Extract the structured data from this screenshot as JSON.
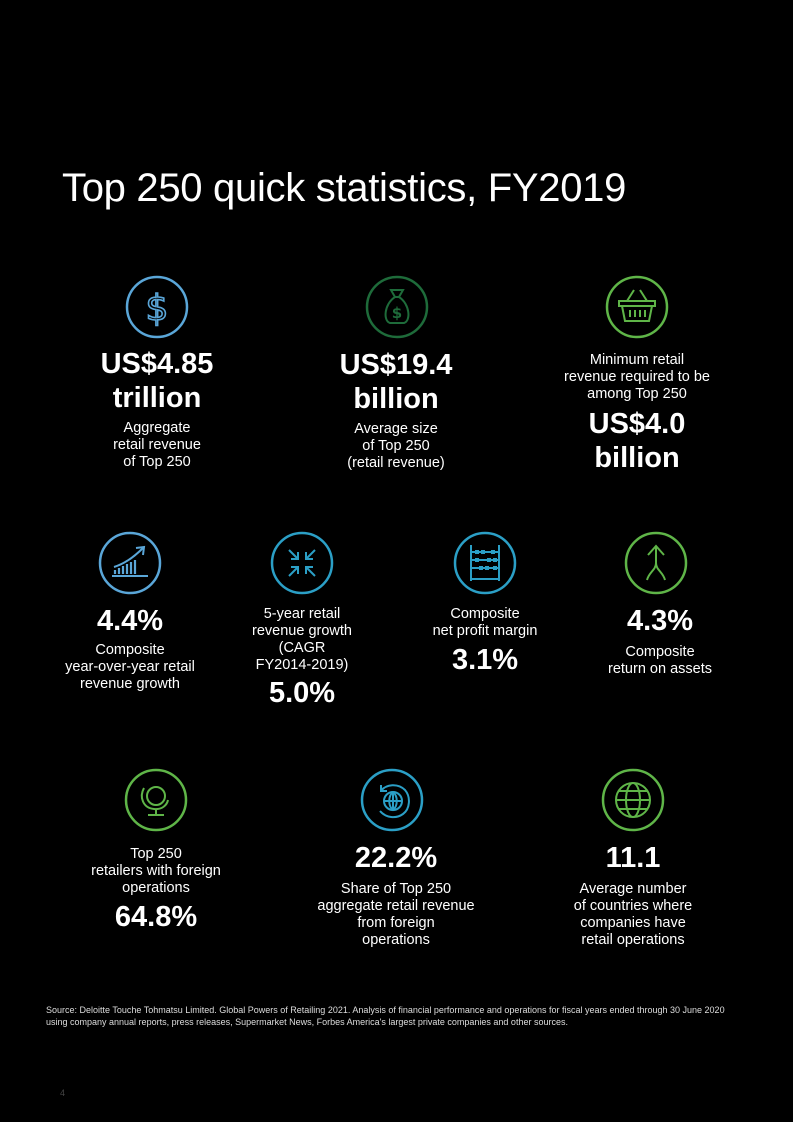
{
  "title": "Top 250 quick statistics, FY2019",
  "colors": {
    "blue": "#5aa6d8",
    "dark_green": "#1e6b3a",
    "green": "#5fb548",
    "teal": "#2b9fc6"
  },
  "stats": [
    {
      "icon": "dollar-icon",
      "value": [
        "US$4.85",
        "trillion"
      ],
      "label": [
        "Aggregate",
        "retail revenue",
        "of Top 250"
      ]
    },
    {
      "icon": "money-bag-icon",
      "value": [
        "US$19.4",
        "billion"
      ],
      "label": [
        "Average size",
        "of Top 250",
        "(retail revenue)"
      ]
    },
    {
      "icon": "shopping-basket-icon",
      "pre_label": [
        "Minimum retail",
        "revenue required to be",
        "among Top 250"
      ],
      "value": [
        "US$4.0",
        "billion"
      ]
    },
    {
      "icon": "growth-chart-icon",
      "value": "4.4%",
      "label": [
        "Composite",
        "year-over-year retail",
        "revenue growth"
      ]
    },
    {
      "icon": "compress-arrows-icon",
      "pre_label": [
        "5-year retail",
        "revenue growth",
        "(CAGR",
        "FY2014-2019)"
      ],
      "value": "5.0%"
    },
    {
      "icon": "abacus-icon",
      "pre_label": [
        "Composite",
        "net profit margin"
      ],
      "value": "3.1%"
    },
    {
      "icon": "merge-arrow-icon",
      "value": "4.3%",
      "label": [
        "Composite",
        "return on assets"
      ]
    },
    {
      "icon": "globe-stand-icon",
      "pre_label": [
        "Top 250",
        "retailers with foreign",
        "operations"
      ],
      "value": "64.8%"
    },
    {
      "icon": "globe-rotate-icon",
      "value": "22.2%",
      "label": [
        "Share of Top 250",
        "aggregate retail revenue",
        "from foreign",
        "operations"
      ]
    },
    {
      "icon": "globe-icon",
      "value": "11.1",
      "label": [
        "Average number",
        "of countries where",
        "companies have",
        "retail operations"
      ]
    }
  ],
  "source": "Source: Deloitte Touche Tohmatsu Limited. Global Powers of Retailing 2021. Analysis of financial performance and operations for fiscal years ended through 30 June 2020 using company annual reports, press releases, Supermarket News, Forbes America's largest private companies and other sources.",
  "page_number": "4"
}
